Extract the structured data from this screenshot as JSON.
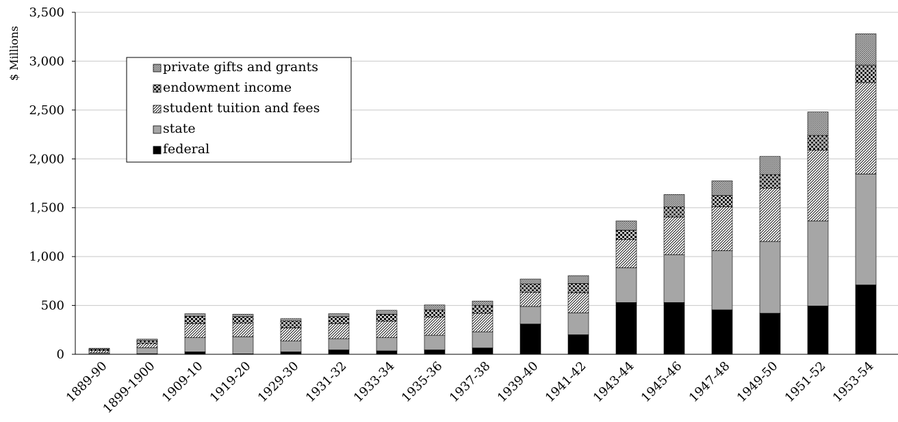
{
  "chart_data": {
    "type": "bar",
    "stacked": true,
    "ylabel": "$ Millions",
    "xlabel": "",
    "ylim": [
      0,
      3500
    ],
    "yticks": [
      0,
      500,
      1000,
      1500,
      2000,
      2500,
      3000,
      3500
    ],
    "ytick_labels": [
      "0",
      "500",
      "1,000",
      "1,500",
      "2,000",
      "2,500",
      "3,000",
      "3,500"
    ],
    "grid": "horizontal",
    "legend_position": "top-left",
    "categories": [
      "1889-90",
      "1899-1900",
      "1909-10",
      "1919-20",
      "1929-30",
      "1931-32",
      "1933-34",
      "1935-36",
      "1937-38",
      "1939-40",
      "1941-42",
      "1943-44",
      "1945-46",
      "1947-48",
      "1949-50",
      "1951-52",
      "1953-54"
    ],
    "series": [
      {
        "name": "federal",
        "pattern": "solid-black",
        "values": [
          3,
          6,
          25,
          5,
          25,
          45,
          35,
          45,
          65,
          310,
          200,
          530,
          530,
          455,
          420,
          495,
          710
        ]
      },
      {
        "name": "state",
        "pattern": "solid-gray",
        "values": [
          12,
          62,
          145,
          175,
          110,
          115,
          135,
          150,
          165,
          180,
          225,
          355,
          490,
          605,
          735,
          870,
          1135
        ]
      },
      {
        "name": "student tuition and fees",
        "pattern": "diagonal-hatch",
        "values": [
          22,
          42,
          145,
          140,
          135,
          155,
          170,
          185,
          190,
          145,
          205,
          290,
          385,
          450,
          545,
          725,
          935
        ]
      },
      {
        "name": "endowment income",
        "pattern": "checker-black",
        "values": [
          15,
          30,
          75,
          65,
          70,
          70,
          70,
          75,
          80,
          85,
          95,
          95,
          105,
          115,
          140,
          150,
          180
        ]
      },
      {
        "name": "private gifts and grants",
        "pattern": "fine-cross-hatch",
        "values": [
          10,
          15,
          25,
          25,
          25,
          30,
          40,
          50,
          45,
          50,
          80,
          95,
          125,
          150,
          185,
          240,
          320
        ]
      }
    ]
  },
  "colors": {
    "axis": "#000000",
    "grid": "#c8c8c8",
    "state_fill": "#a6a6a6",
    "federal_fill": "#000000"
  }
}
